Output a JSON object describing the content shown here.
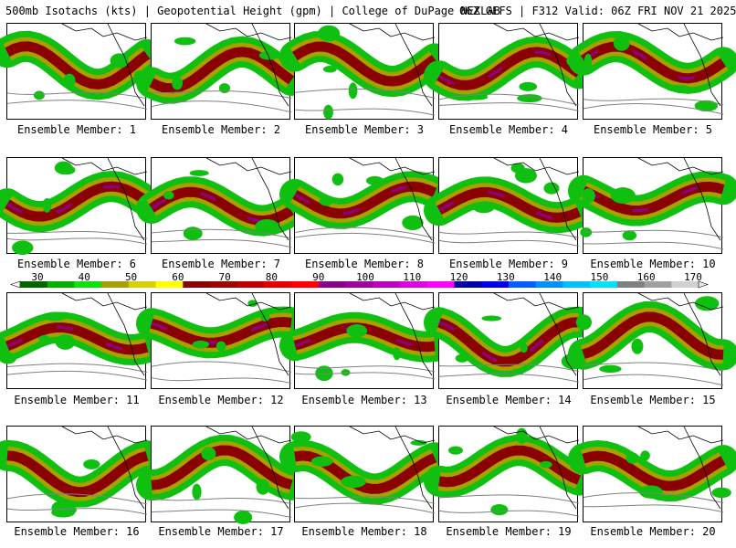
{
  "header": {
    "title": "500mb Isotachs (kts) | Geopotential Height (gpm) | College of DuPage NEXLAB",
    "run_info": "06Z GEFS | F312 Valid: 06Z FRI NOV 21 2025"
  },
  "colorbar": {
    "labels": [
      "30",
      "40",
      "50",
      "60",
      "70",
      "80",
      "90",
      "100",
      "110",
      "120",
      "130",
      "140",
      "150",
      "160",
      "170"
    ],
    "colors": [
      "#006400",
      "#00b000",
      "#10e010",
      "#a8a000",
      "#d8d000",
      "#ffff00",
      "#8b0000",
      "#a00000",
      "#c00000",
      "#e00000",
      "#ff0000",
      "#8b008b",
      "#a000a0",
      "#c000c0",
      "#e000e0",
      "#ff00ff",
      "#0000a0",
      "#0000e0",
      "#0060ff",
      "#0090ff",
      "#00c0ff",
      "#00e0ff",
      "#808080",
      "#a0a0a0",
      "#d0d0d0"
    ]
  },
  "members": [
    {
      "caption": "Ensemble Member: 1"
    },
    {
      "caption": "Ensemble Member: 2"
    },
    {
      "caption": "Ensemble Member: 3"
    },
    {
      "caption": "Ensemble Member: 4"
    },
    {
      "caption": "Ensemble Member: 5"
    },
    {
      "caption": "Ensemble Member: 6"
    },
    {
      "caption": "Ensemble Member: 7"
    },
    {
      "caption": "Ensemble Member: 8"
    },
    {
      "caption": "Ensemble Member: 9"
    },
    {
      "caption": "Ensemble Member: 10"
    },
    {
      "caption": "Ensemble Member: 11"
    },
    {
      "caption": "Ensemble Member: 12"
    },
    {
      "caption": "Ensemble Member: 13"
    },
    {
      "caption": "Ensemble Member: 14"
    },
    {
      "caption": "Ensemble Member: 15"
    },
    {
      "caption": "Ensemble Member: 16"
    },
    {
      "caption": "Ensemble Member: 17"
    },
    {
      "caption": "Ensemble Member: 18"
    },
    {
      "caption": "Ensemble Member: 19"
    },
    {
      "caption": "Ensemble Member: 20"
    }
  ]
}
